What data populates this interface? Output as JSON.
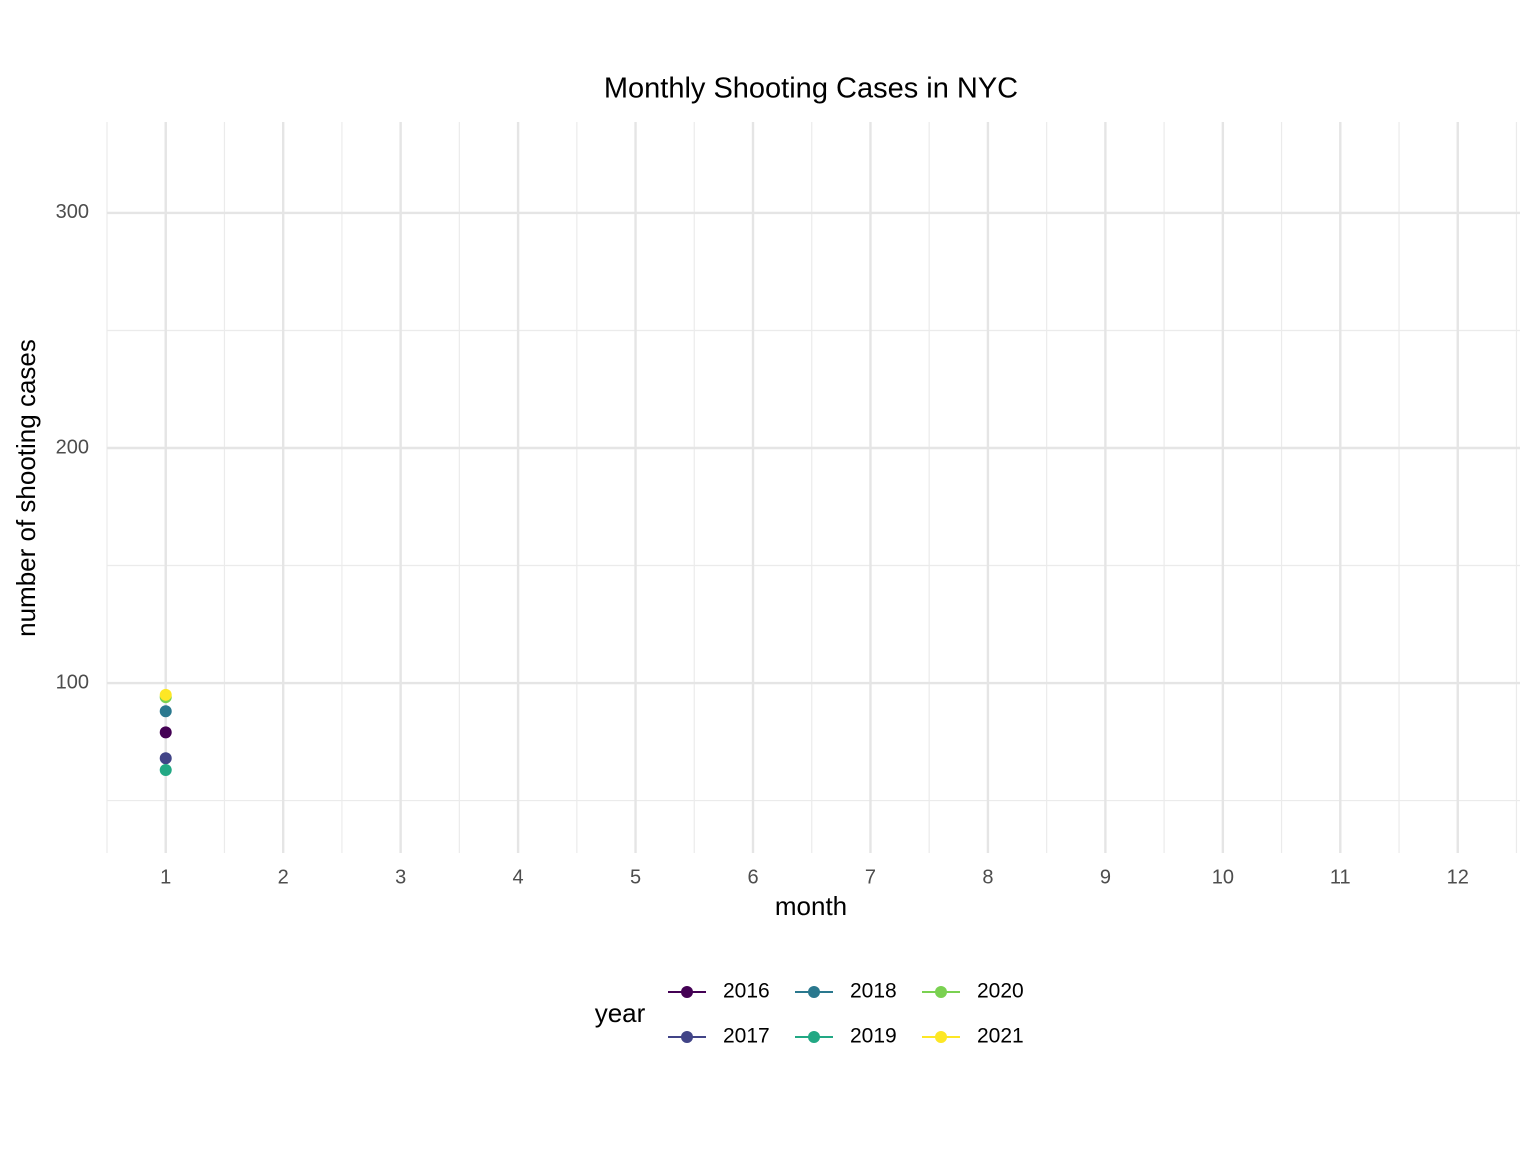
{
  "chart_data": {
    "type": "line",
    "title": "Monthly Shooting Cases in NYC",
    "x_label": "month",
    "y_label": "number of shooting cases",
    "x": [
      1
    ],
    "series": [
      {
        "name": "2016",
        "color": "#440154",
        "values": [
          79
        ]
      },
      {
        "name": "2017",
        "color": "#414487",
        "values": [
          68
        ]
      },
      {
        "name": "2018",
        "color": "#2A788E",
        "values": [
          88
        ]
      },
      {
        "name": "2019",
        "color": "#22A884",
        "values": [
          63
        ]
      },
      {
        "name": "2020",
        "color": "#7AD151",
        "values": [
          94
        ]
      },
      {
        "name": "2021",
        "color": "#FDE725",
        "values": [
          95
        ]
      }
    ],
    "legend_title": "year",
    "legend": "bottom",
    "xlim": [
      0.5,
      12.53
    ],
    "xticks": [
      1,
      2,
      3,
      4,
      5,
      6,
      7,
      8,
      9,
      10,
      11,
      12
    ],
    "ylim": [
      27.7,
      338.7
    ],
    "yticks": [
      100,
      200,
      300
    ],
    "grid": true
  }
}
